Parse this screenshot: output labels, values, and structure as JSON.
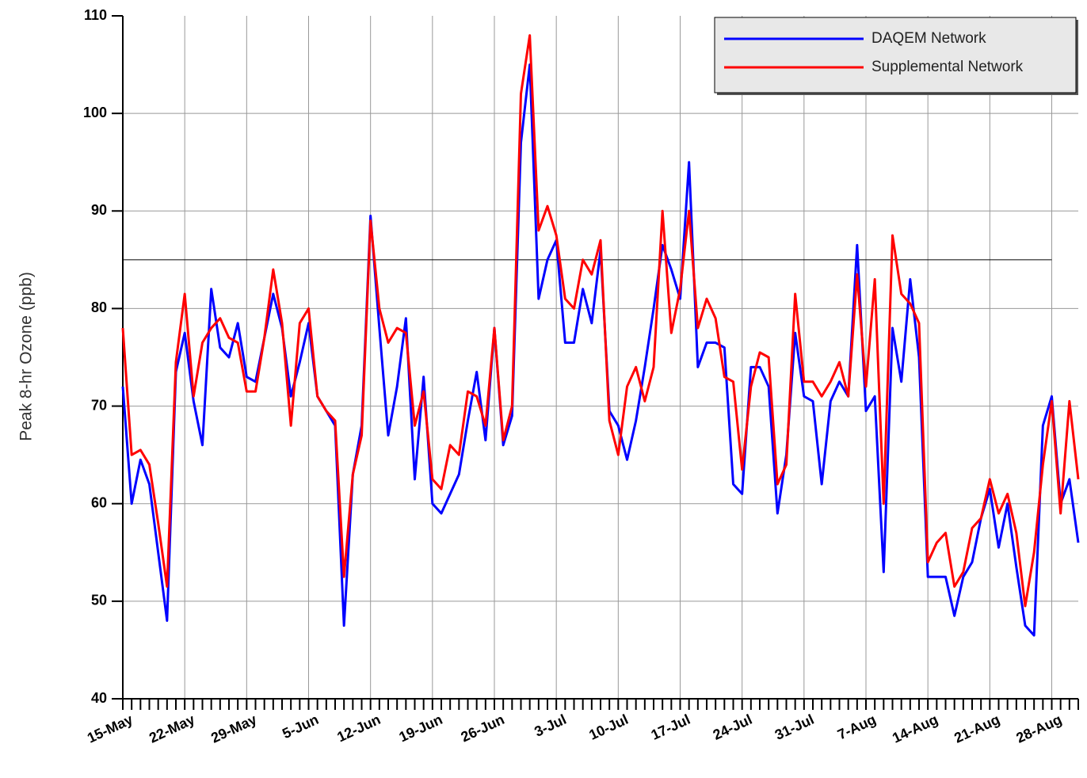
{
  "chart_data": {
    "type": "line",
    "y_label": "Peak 8-hr Ozone (ppb)",
    "x": [
      0,
      1,
      2,
      3,
      4,
      5,
      6,
      7,
      8,
      9,
      10,
      11,
      12,
      13,
      14,
      15,
      16,
      17,
      18,
      19,
      20,
      21,
      22,
      23,
      24,
      25,
      26,
      27,
      28,
      29,
      30,
      31,
      32,
      33,
      34,
      35,
      36,
      37,
      38,
      39,
      40,
      41,
      42,
      43,
      44,
      45,
      46,
      47,
      48,
      49,
      50,
      51,
      52,
      53,
      54,
      55,
      56,
      57,
      58,
      59,
      60,
      61,
      62,
      63,
      64,
      65,
      66,
      67,
      68,
      69,
      70,
      71,
      72,
      73,
      74,
      75,
      76,
      77,
      78,
      79,
      80,
      81,
      82,
      83,
      84,
      85,
      86,
      87,
      88,
      89,
      90,
      91,
      92,
      93,
      94,
      95,
      96,
      97,
      98,
      99,
      100,
      101,
      102,
      103,
      104,
      105,
      106,
      107,
      108
    ],
    "series": [
      {
        "name": "DAQEM Network",
        "color": "#0000ff",
        "values": [
          72,
          60,
          64.5,
          62,
          55,
          48,
          73.5,
          77.5,
          70.5,
          66,
          82,
          76,
          75,
          78.5,
          73,
          72.5,
          77,
          81.5,
          78,
          71,
          74.5,
          78.5,
          71,
          69.5,
          68,
          47.5,
          63,
          68,
          89.5,
          78,
          67,
          72,
          79,
          62.5,
          73,
          60,
          59,
          61,
          63,
          68.5,
          73.5,
          66.5,
          78,
          66,
          69,
          97,
          105,
          81,
          85,
          87,
          76.5,
          76.5,
          82,
          78.5,
          86,
          69.5,
          68,
          64.5,
          68.5,
          74,
          80,
          86.5,
          84,
          81,
          95,
          74,
          76.5,
          76.5,
          76,
          62,
          61,
          74,
          74,
          72,
          59,
          65,
          77.5,
          71,
          70.5,
          62,
          70.5,
          72.5,
          71,
          86.5,
          69.5,
          71,
          53,
          78,
          72.5,
          83,
          75,
          52.5,
          52.5,
          52.5,
          48.5,
          52.5,
          54,
          58.5,
          61.5,
          55.5,
          60,
          53.5,
          47.5,
          46.5,
          68,
          71,
          60,
          62.5,
          56
        ]
      },
      {
        "name": "Supplemental Network",
        "color": "#ff0000",
        "values": [
          78,
          65,
          65.5,
          64,
          58,
          51.5,
          74.5,
          81.5,
          71,
          76.5,
          78,
          79,
          77,
          76.5,
          71.5,
          71.5,
          77,
          84,
          78.5,
          68,
          78.5,
          80,
          71,
          69.5,
          68.5,
          52.5,
          63,
          67,
          89,
          80,
          76.5,
          78,
          77.5,
          68,
          71.5,
          62.5,
          61.5,
          66,
          65,
          71.5,
          71,
          68,
          78,
          66.5,
          70,
          102,
          108,
          88,
          90.5,
          87.5,
          81,
          80,
          85,
          83.5,
          87,
          68.5,
          65,
          72,
          74,
          70.5,
          74,
          90,
          77.5,
          82,
          90,
          78,
          81,
          79,
          73,
          72.5,
          63.5,
          72,
          75.5,
          75,
          62,
          64,
          81.5,
          72.5,
          72.5,
          71,
          72.5,
          74.5,
          71,
          83.5,
          72,
          83,
          60,
          87.5,
          81.5,
          80.5,
          78.5,
          54,
          56,
          57,
          51.5,
          53,
          57.5,
          58.5,
          62.5,
          59,
          61,
          57,
          49.5,
          55,
          64,
          70.5,
          59,
          70.5,
          62.5
        ]
      }
    ],
    "reference_line": {
      "y": 85,
      "x": [
        0,
        105
      ],
      "color": "#000000"
    },
    "xlim": [
      0,
      108
    ],
    "xticks": [
      {
        "value": 0,
        "label": "15-May"
      },
      {
        "value": 7,
        "label": "22-May"
      },
      {
        "value": 14,
        "label": "29-May"
      },
      {
        "value": 21,
        "label": "5-Jun"
      },
      {
        "value": 28,
        "label": "12-Jun"
      },
      {
        "value": 35,
        "label": "19-Jun"
      },
      {
        "value": 42,
        "label": "26-Jun"
      },
      {
        "value": 49,
        "label": "3-Jul"
      },
      {
        "value": 56,
        "label": "10-Jul"
      },
      {
        "value": 63,
        "label": "17-Jul"
      },
      {
        "value": 70,
        "label": "24-Jul"
      },
      {
        "value": 77,
        "label": "31-Jul"
      },
      {
        "value": 84,
        "label": "7-Aug"
      },
      {
        "value": 91,
        "label": "14-Aug"
      },
      {
        "value": 98,
        "label": "21-Aug"
      },
      {
        "value": 105,
        "label": "28-Aug"
      }
    ],
    "ylim": [
      40,
      110
    ],
    "yticks": [
      40,
      50,
      60,
      70,
      80,
      90,
      100,
      110
    ],
    "grid": true,
    "legend": "top-right"
  }
}
